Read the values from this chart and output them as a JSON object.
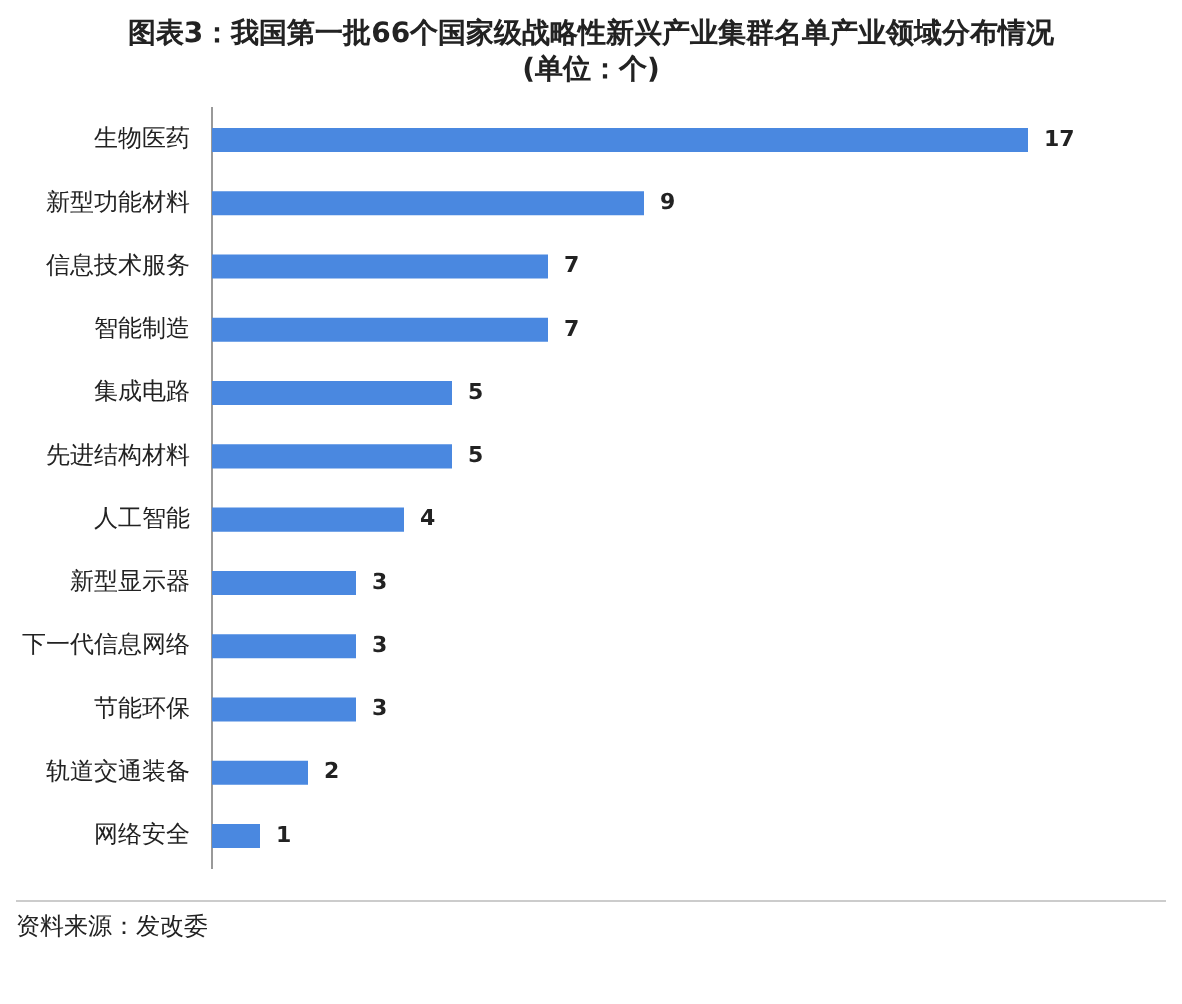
{
  "chart_data": {
    "type": "bar",
    "orientation": "horizontal",
    "title": "图表3：我国第一批66个国家级战略性新兴产业集群名单产业领域分布情况",
    "subtitle": "(单位：个)",
    "categories": [
      "生物医药",
      "新型功能材料",
      "信息技术服务",
      "智能制造",
      "集成电路",
      "先进结构材料",
      "人工智能",
      "新型显示器",
      "下一代信息网络",
      "节能环保",
      "轨道交通装备",
      "网络安全"
    ],
    "values": [
      17,
      9,
      7,
      7,
      5,
      5,
      4,
      3,
      3,
      3,
      2,
      1
    ],
    "color": "#4a88e0",
    "data_labels": true,
    "legend": false,
    "annotations": [
      "资料来源：发改委"
    ]
  }
}
